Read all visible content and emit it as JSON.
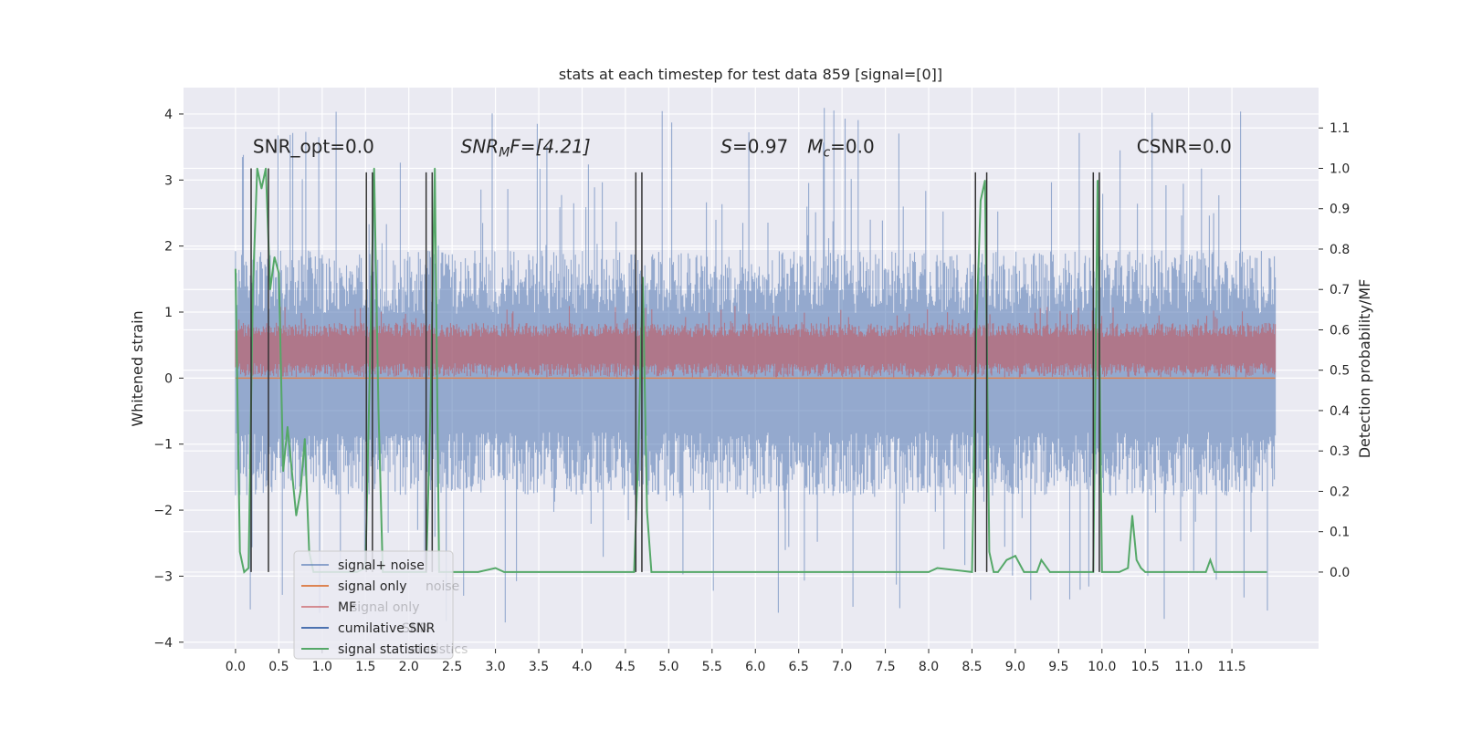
{
  "chart_data": {
    "type": "line",
    "title": "stats at each timestep for test data 859 [signal=[0]]",
    "ylabel": "Whitened strain",
    "y2label": "Detection probability/MF",
    "xlim": [
      -0.6,
      12.5
    ],
    "ylim": [
      -4.1,
      4.4
    ],
    "y2lim": [
      -0.19,
      1.2
    ],
    "x_ticks": [
      0.0,
      0.5,
      1.0,
      1.5,
      2.0,
      2.5,
      3.0,
      3.5,
      4.0,
      4.5,
      5.0,
      5.5,
      6.0,
      6.5,
      7.0,
      7.5,
      8.0,
      8.5,
      9.0,
      9.5,
      10.0,
      10.5,
      11.0,
      11.5
    ],
    "y_ticks": [
      -4,
      -3,
      -2,
      -1,
      0,
      1,
      2,
      3,
      4
    ],
    "y2_ticks": [
      0.0,
      0.1,
      0.2,
      0.3,
      0.4,
      0.5,
      0.6,
      0.7,
      0.8,
      0.9,
      1.0,
      1.1
    ],
    "x_tick_labels": [
      "0.0",
      "0.5",
      "1.0",
      "1.5",
      "2.0",
      "2.5",
      "3.0",
      "3.5",
      "4.0",
      "4.5",
      "5.0",
      "5.5",
      "6.0",
      "6.5",
      "7.0",
      "7.5",
      "8.0",
      "8.5",
      "9.0",
      "9.5",
      "10.0",
      "10.5",
      "11.0",
      "11.5"
    ],
    "y_tick_labels": [
      "−4",
      "−3",
      "−2",
      "−1",
      "0",
      "1",
      "2",
      "3",
      "4"
    ],
    "y2_tick_labels": [
      "0.0",
      "0.1",
      "0.2",
      "0.3",
      "0.4",
      "0.5",
      "0.6",
      "0.7",
      "0.8",
      "0.9",
      "1.0",
      "1.1"
    ],
    "grid": true,
    "legend_position": "lower-left",
    "series": [
      {
        "name": "signal+ noise",
        "color": "#4c72b0",
        "axis": "left",
        "kind": "noise",
        "x_range": [
          0.0,
          12.0
        ],
        "band": [
          -1.3,
          1.45
        ],
        "extreme_min": -3.7,
        "extreme_max": 4.1
      },
      {
        "name": "signal only",
        "color": "#dd8452",
        "axis": "left",
        "kind": "flat",
        "x_range": [
          0.0,
          12.0
        ],
        "value": 0.0
      },
      {
        "name": "MF",
        "color": "#c44e52",
        "axis": "right",
        "kind": "noise",
        "x_range": [
          0.0,
          12.0
        ],
        "band": [
          0.5,
          0.6
        ],
        "extreme_min": 0.49,
        "extreme_max": 0.66
      },
      {
        "name": "cumilative SNR",
        "color": "#4c72b0",
        "axis": "right",
        "kind": "none"
      },
      {
        "name": "signal statistics",
        "color": "#55a868",
        "axis": "right",
        "kind": "line",
        "x": [
          0.0,
          0.05,
          0.1,
          0.15,
          0.2,
          0.25,
          0.3,
          0.35,
          0.4,
          0.45,
          0.5,
          0.55,
          0.6,
          0.7,
          0.75,
          0.8,
          0.85,
          0.9,
          1.0,
          1.1,
          1.2,
          1.3,
          1.4,
          1.5,
          1.55,
          1.6,
          1.65,
          1.7,
          1.8,
          2.0,
          2.2,
          2.25,
          2.3,
          2.35,
          2.4,
          2.6,
          2.8,
          3.0,
          3.1,
          3.2,
          3.5,
          4.0,
          4.5,
          4.6,
          4.65,
          4.7,
          4.75,
          4.8,
          5.0,
          5.5,
          6.0,
          6.5,
          7.0,
          7.5,
          7.6,
          7.7,
          8.0,
          8.1,
          8.5,
          8.55,
          8.6,
          8.65,
          8.7,
          8.75,
          8.8,
          8.9,
          9.0,
          9.1,
          9.2,
          9.25,
          9.3,
          9.4,
          9.5,
          9.8,
          9.9,
          9.95,
          10.0,
          10.1,
          10.2,
          10.3,
          10.35,
          10.4,
          10.45,
          10.5,
          10.8,
          11.0,
          11.1,
          11.2,
          11.25,
          11.3,
          11.5,
          11.8,
          11.9
        ],
        "y": [
          0.75,
          0.05,
          0.0,
          0.01,
          0.7,
          1.0,
          0.95,
          1.0,
          0.7,
          0.78,
          0.74,
          0.25,
          0.36,
          0.14,
          0.2,
          0.33,
          0.05,
          0.0,
          0.0,
          0.0,
          0.0,
          0.0,
          0.0,
          0.01,
          0.5,
          1.0,
          0.4,
          0.0,
          0.0,
          0.0,
          0.0,
          0.4,
          1.0,
          0.0,
          0.0,
          0.0,
          0.0,
          0.01,
          0.0,
          0.0,
          0.0,
          0.0,
          0.0,
          0.0,
          0.3,
          0.73,
          0.15,
          0.0,
          0.0,
          0.0,
          0.0,
          0.0,
          0.0,
          0.0,
          0.0,
          0.0,
          0.0,
          0.01,
          0.0,
          0.6,
          0.92,
          0.97,
          0.05,
          0.0,
          0.0,
          0.03,
          0.04,
          0.0,
          0.0,
          0.0,
          0.03,
          0.0,
          0.0,
          0.0,
          0.0,
          0.97,
          0.0,
          0.0,
          0.0,
          0.01,
          0.14,
          0.03,
          0.01,
          0.0,
          0.0,
          0.0,
          0.0,
          0.0,
          0.03,
          0.0,
          0.0,
          0.0,
          0.0
        ]
      }
    ],
    "vlines": [
      {
        "x": 0.18,
        "y_from": 0.0,
        "y_to": 1.0
      },
      {
        "x": 0.38,
        "y_from": 0.0,
        "y_to": 1.0
      },
      {
        "x": 1.51,
        "y_from": 0.0,
        "y_to": 0.99
      },
      {
        "x": 1.58,
        "y_from": 0.0,
        "y_to": 0.99
      },
      {
        "x": 2.2,
        "y_from": 0.0,
        "y_to": 0.99
      },
      {
        "x": 2.27,
        "y_from": 0.0,
        "y_to": 0.99
      },
      {
        "x": 4.62,
        "y_from": 0.0,
        "y_to": 0.99
      },
      {
        "x": 4.69,
        "y_from": 0.0,
        "y_to": 0.99
      },
      {
        "x": 8.54,
        "y_from": 0.0,
        "y_to": 0.99
      },
      {
        "x": 8.67,
        "y_from": 0.0,
        "y_to": 0.99
      },
      {
        "x": 9.9,
        "y_from": 0.0,
        "y_to": 0.99
      },
      {
        "x": 9.97,
        "y_from": 0.0,
        "y_to": 0.99
      }
    ],
    "annotations": [
      {
        "id": "snr-opt",
        "x": 0.2,
        "y": 3.3,
        "text": "SNR_opt=0.0"
      },
      {
        "id": "snr-mf",
        "x": 2.6,
        "y": 3.3,
        "text": "SNR",
        "sub": "M",
        "tail": "F=[4.21]"
      },
      {
        "id": "s-val",
        "x": 5.6,
        "y": 3.3,
        "text": "S",
        "tail": "=0.97"
      },
      {
        "id": "mc-val",
        "x": 6.6,
        "y": 3.3,
        "text": "M",
        "sub": "c",
        "tail": "=0.0"
      },
      {
        "id": "csnr",
        "x": 10.4,
        "y": 3.3,
        "text": "CSNR=0.0"
      }
    ],
    "legend_ghost": [
      {
        "text": "noise",
        "row": 1
      },
      {
        "text": "signal only",
        "row": 2
      },
      {
        "text": "SNR",
        "row": 3
      },
      {
        "text": "statistics",
        "row": 4
      }
    ]
  }
}
